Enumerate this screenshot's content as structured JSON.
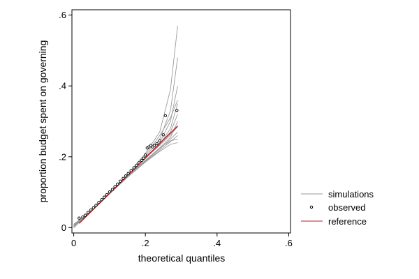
{
  "chart_data": {
    "type": "line",
    "title": "",
    "xlabel": "theoretical quantiles",
    "ylabel": "proportion budget spent on governing",
    "xlim": [
      -0.005,
      0.605
    ],
    "ylim": [
      -0.015,
      0.615
    ],
    "x_ticks": [
      0,
      0.2,
      0.4,
      0.6
    ],
    "x_tick_labels": [
      "0",
      ".2",
      ".4",
      ".6"
    ],
    "y_ticks": [
      0,
      0.2,
      0.4,
      0.6
    ],
    "y_tick_labels": [
      "0",
      ".2",
      ".4",
      ".6"
    ],
    "grid": false,
    "legend_position": "right",
    "colors": {
      "simulations": "#9a9a9a",
      "observed": "#000000",
      "reference": "#c0191f"
    },
    "legend": [
      {
        "label": "simulations",
        "marker": "line",
        "color": "#9a9a9a"
      },
      {
        "label": "observed",
        "marker": "hollow-circle",
        "color": "#000000"
      },
      {
        "label": "reference",
        "marker": "line",
        "color": "#c0191f"
      }
    ],
    "reference": {
      "name": "reference",
      "x": [
        0.015,
        0.29
      ],
      "y": [
        0.012,
        0.287
      ]
    },
    "observed": {
      "name": "observed",
      "x": [
        0.015,
        0.025,
        0.032,
        0.04,
        0.048,
        0.055,
        0.062,
        0.07,
        0.078,
        0.085,
        0.092,
        0.1,
        0.108,
        0.115,
        0.122,
        0.13,
        0.138,
        0.145,
        0.152,
        0.16,
        0.168,
        0.175,
        0.182,
        0.19,
        0.195,
        0.2,
        0.205,
        0.21,
        0.215,
        0.22,
        0.225,
        0.232,
        0.24,
        0.25,
        0.256,
        0.288
      ],
      "y": [
        0.027,
        0.03,
        0.035,
        0.043,
        0.05,
        0.056,
        0.063,
        0.071,
        0.079,
        0.086,
        0.093,
        0.101,
        0.108,
        0.116,
        0.123,
        0.131,
        0.139,
        0.146,
        0.153,
        0.161,
        0.169,
        0.176,
        0.183,
        0.19,
        0.196,
        0.205,
        0.225,
        0.228,
        0.232,
        0.228,
        0.232,
        0.237,
        0.245,
        0.262,
        0.316,
        0.331
      ]
    },
    "simulations": [
      {
        "x": [
          0.0,
          0.05,
          0.1,
          0.15,
          0.2,
          0.24,
          0.27,
          0.29
        ],
        "y": [
          0.0,
          0.05,
          0.1,
          0.15,
          0.21,
          0.27,
          0.39,
          0.57
        ]
      },
      {
        "x": [
          0.0,
          0.05,
          0.1,
          0.15,
          0.2,
          0.24,
          0.27,
          0.29
        ],
        "y": [
          0.005,
          0.052,
          0.1,
          0.148,
          0.2,
          0.25,
          0.33,
          0.48
        ]
      },
      {
        "x": [
          0.0,
          0.05,
          0.1,
          0.15,
          0.2,
          0.24,
          0.27,
          0.29
        ],
        "y": [
          0.01,
          0.048,
          0.097,
          0.146,
          0.196,
          0.24,
          0.3,
          0.4
        ]
      },
      {
        "x": [
          0.0,
          0.05,
          0.1,
          0.15,
          0.2,
          0.24,
          0.27,
          0.29
        ],
        "y": [
          0.0,
          0.05,
          0.099,
          0.147,
          0.195,
          0.235,
          0.28,
          0.35
        ]
      },
      {
        "x": [
          0.0,
          0.05,
          0.1,
          0.15,
          0.2,
          0.24,
          0.27,
          0.29
        ],
        "y": [
          0.008,
          0.053,
          0.102,
          0.15,
          0.198,
          0.238,
          0.27,
          0.32
        ]
      },
      {
        "x": [
          0.0,
          0.05,
          0.1,
          0.15,
          0.2,
          0.24,
          0.27,
          0.29
        ],
        "y": [
          0.004,
          0.049,
          0.098,
          0.145,
          0.19,
          0.225,
          0.255,
          0.3
        ]
      },
      {
        "x": [
          0.0,
          0.05,
          0.1,
          0.15,
          0.2,
          0.24,
          0.27,
          0.29
        ],
        "y": [
          0.002,
          0.05,
          0.1,
          0.149,
          0.197,
          0.232,
          0.262,
          0.285
        ]
      },
      {
        "x": [
          0.0,
          0.05,
          0.1,
          0.15,
          0.2,
          0.24,
          0.27,
          0.29
        ],
        "y": [
          0.006,
          0.051,
          0.1,
          0.146,
          0.188,
          0.222,
          0.25,
          0.27
        ]
      },
      {
        "x": [
          0.0,
          0.05,
          0.1,
          0.15,
          0.2,
          0.24,
          0.27,
          0.29
        ],
        "y": [
          0.003,
          0.048,
          0.096,
          0.143,
          0.186,
          0.218,
          0.243,
          0.26
        ]
      },
      {
        "x": [
          0.0,
          0.05,
          0.1,
          0.15,
          0.2,
          0.24,
          0.27,
          0.29
        ],
        "y": [
          0.007,
          0.052,
          0.101,
          0.147,
          0.19,
          0.225,
          0.245,
          0.25
        ]
      },
      {
        "x": [
          0.0,
          0.05,
          0.1,
          0.15,
          0.2,
          0.24,
          0.27,
          0.29
        ],
        "y": [
          0.001,
          0.047,
          0.095,
          0.142,
          0.185,
          0.215,
          0.235,
          0.24
        ]
      },
      {
        "x": [
          0.0,
          0.05,
          0.1,
          0.15,
          0.2,
          0.24,
          0.27,
          0.29
        ],
        "y": [
          0.005,
          0.05,
          0.099,
          0.148,
          0.205,
          0.26,
          0.31,
          0.36
        ]
      }
    ]
  }
}
